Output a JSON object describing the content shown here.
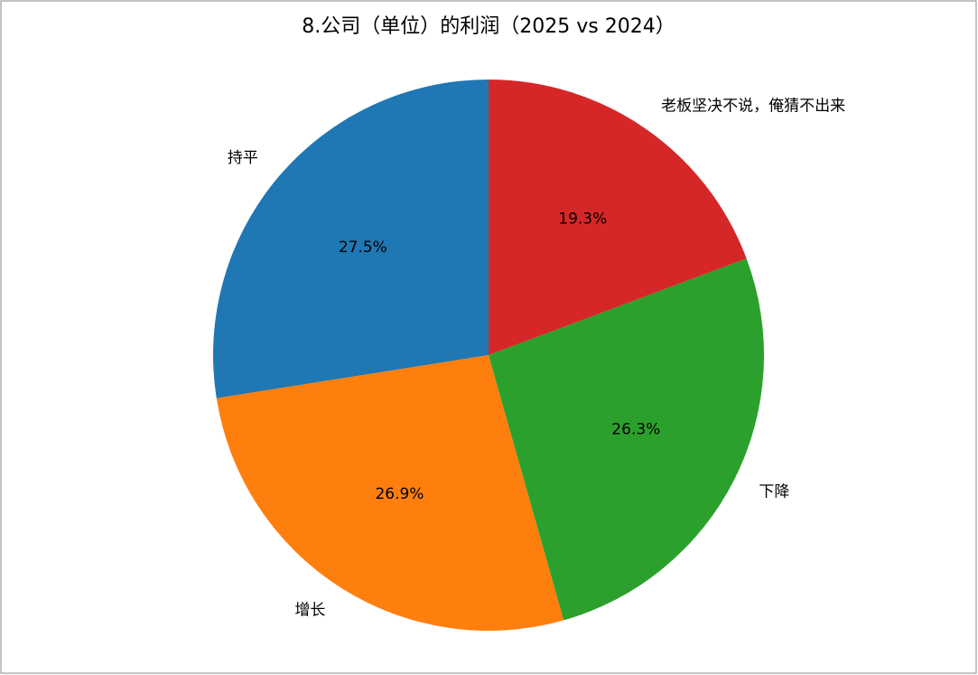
{
  "chart_data": {
    "type": "pie",
    "title": "8.公司（单位）的利润（2025 vs 2024）",
    "categories": [
      "持平",
      "增长",
      "下降",
      "老板坚决不说，俺猜不出来"
    ],
    "values": [
      27.5,
      26.9,
      26.3,
      19.3
    ],
    "value_labels": [
      "27.5%",
      "26.9%",
      "26.3%",
      "19.3%"
    ],
    "colors": [
      "#1f77b4",
      "#ff7f0e",
      "#2ca02c",
      "#d62728"
    ]
  }
}
